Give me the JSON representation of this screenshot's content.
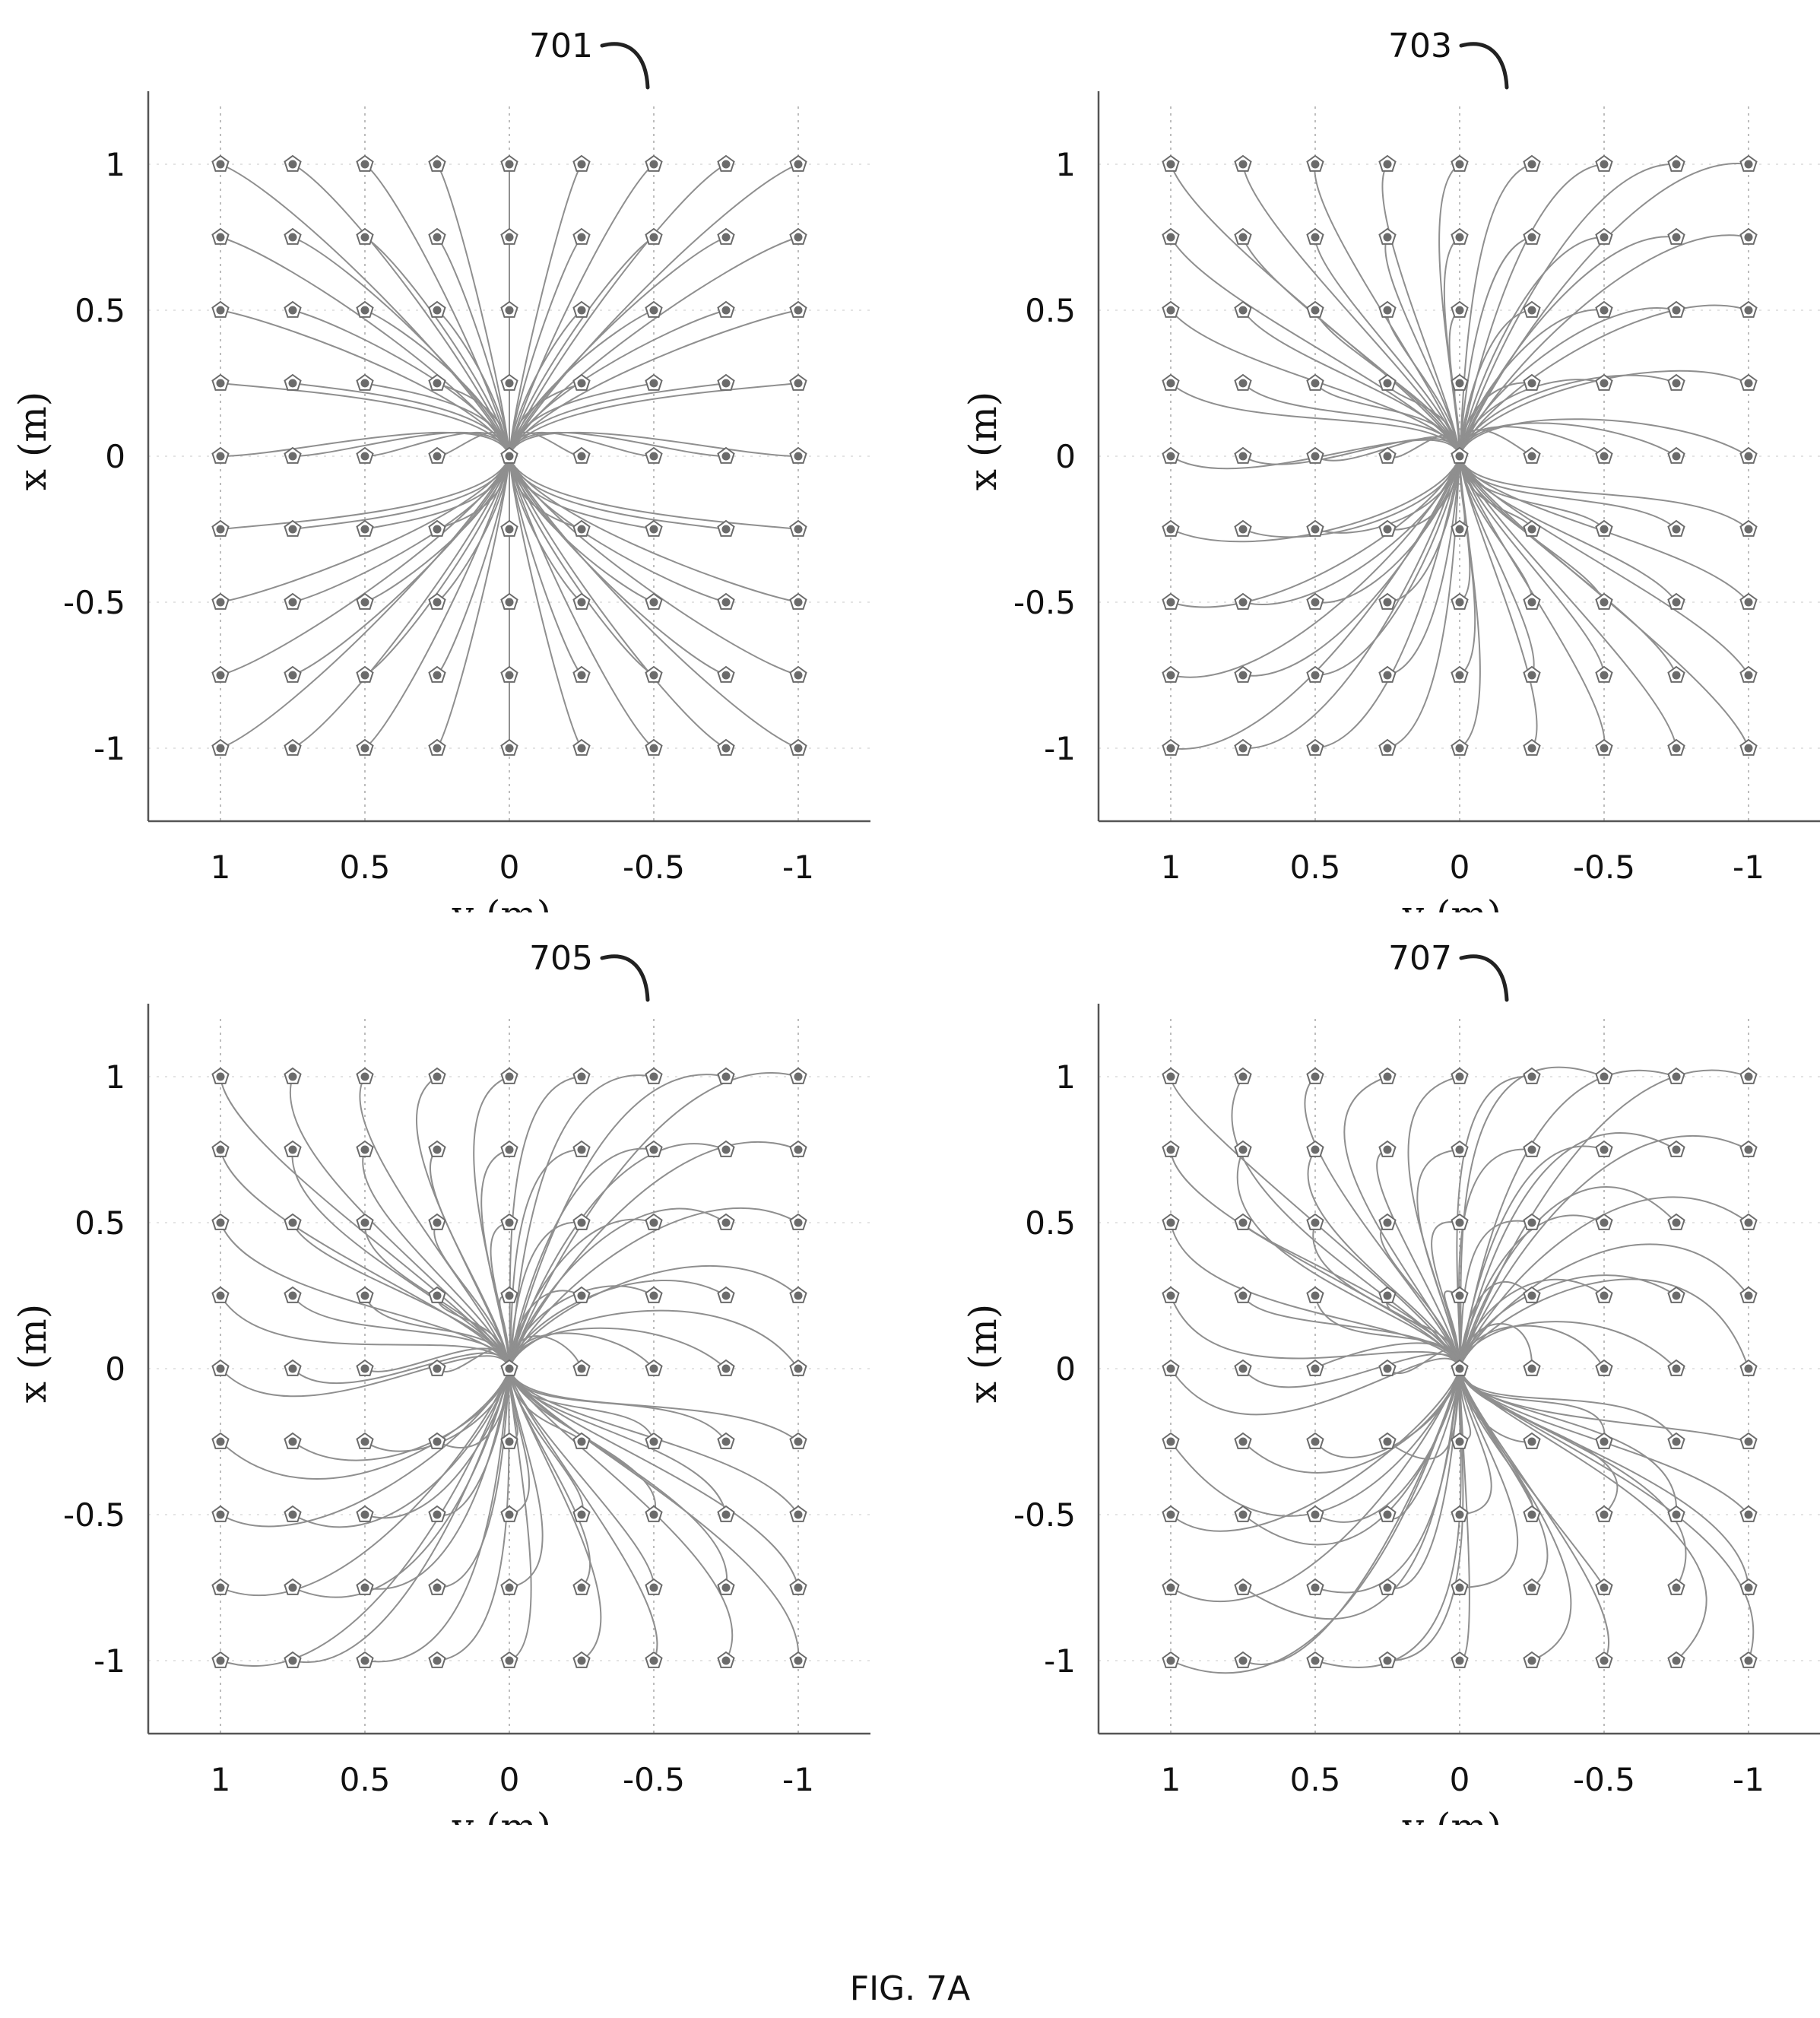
{
  "figure": {
    "caption": "FIG. 7A"
  },
  "colors": {
    "axis": "#555555",
    "trajectory": "#8f8f8f",
    "grid": "#bdbdbd",
    "marker": "#6b6b6b"
  },
  "chart_data": [
    {
      "type": "scatter",
      "reference": "701",
      "title": "",
      "xlabel": "y (m)",
      "ylabel": "x (m)",
      "x_reversed": true,
      "xlim": [
        1.25,
        -1.25
      ],
      "ylim": [
        -1.25,
        1.25
      ],
      "xticks": [
        1,
        0.5,
        0,
        -0.5,
        -1
      ],
      "xtick_labels": [
        "1",
        "0.5",
        "0",
        "-0.5",
        "-1"
      ],
      "yticks": [
        1,
        0.5,
        0,
        -0.5,
        -1
      ],
      "ytick_labels": [
        "1",
        "0.5",
        "0",
        "-0.5",
        "-1"
      ],
      "grid": "dotted lines through marker columns",
      "markers": {
        "y_values": [
          1,
          0.75,
          0.5,
          0.25,
          0,
          -0.25,
          -0.5,
          -0.75,
          -1
        ],
        "x_values": [
          1,
          0.75,
          0.5,
          0.25,
          0,
          -0.25,
          -0.5,
          -0.75,
          -1
        ]
      },
      "trajectories": {
        "description": "every start marker connects to the origin (0, 0)",
        "convergence_point": [
          0,
          0
        ],
        "swirl": 0.0,
        "detour": 0.0
      }
    },
    {
      "type": "scatter",
      "reference": "703",
      "title": "",
      "xlabel": "y (m)",
      "ylabel": "x (m)",
      "x_reversed": true,
      "xlim": [
        1.25,
        -1.25
      ],
      "ylim": [
        -1.25,
        1.25
      ],
      "xticks": [
        1,
        0.5,
        0,
        -0.5,
        -1
      ],
      "xtick_labels": [
        "1",
        "0.5",
        "0",
        "-0.5",
        "-1"
      ],
      "yticks": [
        1,
        0.5,
        0,
        -0.5,
        -1
      ],
      "ytick_labels": [
        "1",
        "0.5",
        "0",
        "-0.5",
        "-1"
      ],
      "grid": "dotted lines through marker columns",
      "markers": {
        "y_values": [
          1,
          0.75,
          0.5,
          0.25,
          0,
          -0.25,
          -0.5,
          -0.75,
          -1
        ],
        "x_values": [
          1,
          0.75,
          0.5,
          0.25,
          0,
          -0.25,
          -0.5,
          -0.75,
          -1
        ]
      },
      "trajectories": {
        "description": "every start marker connects to the origin (0, 0) with a rotational swirl",
        "convergence_point": [
          0,
          0
        ],
        "swirl": 0.35,
        "detour": 0.0
      }
    },
    {
      "type": "scatter",
      "reference": "705",
      "title": "",
      "xlabel": "y (m)",
      "ylabel": "x (m)",
      "x_reversed": true,
      "xlim": [
        1.25,
        -1.25
      ],
      "ylim": [
        -1.25,
        1.25
      ],
      "xticks": [
        1,
        0.5,
        0,
        -0.5,
        -1
      ],
      "xtick_labels": [
        "1",
        "0.5",
        "0",
        "-0.5",
        "-1"
      ],
      "yticks": [
        1,
        0.5,
        0,
        -0.5,
        -1
      ],
      "ytick_labels": [
        "1",
        "0.5",
        "0",
        "-0.5",
        "-1"
      ],
      "grid": "dotted lines through marker columns",
      "markers": {
        "y_values": [
          1,
          0.75,
          0.5,
          0.25,
          0,
          -0.25,
          -0.5,
          -0.75,
          -1
        ],
        "x_values": [
          1,
          0.75,
          0.5,
          0.25,
          0,
          -0.25,
          -0.5,
          -0.75,
          -1
        ]
      },
      "trajectories": {
        "description": "every start marker connects to the origin (0, 0) with a strong swirl",
        "convergence_point": [
          0,
          0
        ],
        "swirl": 0.6,
        "detour": 0.15
      }
    },
    {
      "type": "scatter",
      "reference": "707",
      "title": "",
      "xlabel": "y (m)",
      "ylabel": "x (m)",
      "x_reversed": true,
      "xlim": [
        1.25,
        -1.25
      ],
      "ylim": [
        -1.25,
        1.25
      ],
      "xticks": [
        1,
        0.5,
        0,
        -0.5,
        -1
      ],
      "xtick_labels": [
        "1",
        "0.5",
        "0",
        "-0.5",
        "-1"
      ],
      "yticks": [
        1,
        0.5,
        0,
        -0.5,
        -1
      ],
      "ytick_labels": [
        "1",
        "0.5",
        "0",
        "-0.5",
        "-1"
      ],
      "grid": "dotted lines through marker columns",
      "markers": {
        "y_values": [
          1,
          0.75,
          0.5,
          0.25,
          0,
          -0.25,
          -0.5,
          -0.75,
          -1
        ],
        "x_values": [
          1,
          0.75,
          0.5,
          0.25,
          0,
          -0.25,
          -0.5,
          -0.75,
          -1
        ]
      },
      "trajectories": {
        "description": "every start marker connects to the origin (0, 0) with large looping overshoot",
        "convergence_point": [
          0,
          0
        ],
        "swirl": 0.85,
        "detour": 0.45
      }
    }
  ]
}
